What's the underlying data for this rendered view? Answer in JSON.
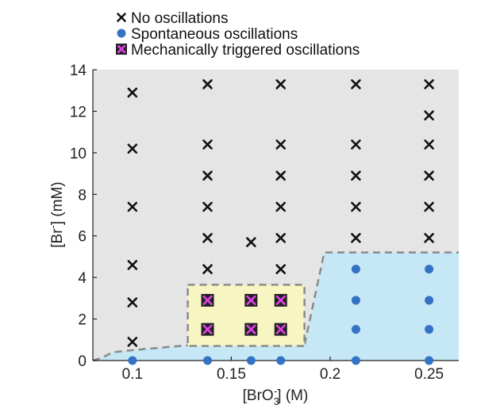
{
  "chart_data": {
    "type": "scatter",
    "xlabel": {
      "prefix": "[BrO",
      "sub": "3",
      "sup": "-",
      "suffix": "] (M)"
    },
    "ylabel": {
      "prefix": "[Br",
      "sup": "-",
      "suffix": "] (mM)"
    },
    "xlim": [
      0.08,
      0.265
    ],
    "ylim": [
      0,
      14
    ],
    "xticks": [
      0.1,
      0.15,
      0.2,
      0.25
    ],
    "xtick_labels": [
      "0.1",
      "0.15",
      "0.2",
      "0.25"
    ],
    "yticks": [
      0,
      2,
      4,
      6,
      8,
      10,
      12,
      14
    ],
    "ytick_labels": [
      "0",
      "2",
      "4",
      "6",
      "8",
      "10",
      "12",
      "14"
    ],
    "legend": {
      "position": "top",
      "entries": [
        {
          "key": "none",
          "label": "No oscillations"
        },
        {
          "key": "spont",
          "label": "Spontaneous oscillations"
        },
        {
          "key": "mech",
          "label": "Mechanically triggered oscillations"
        }
      ]
    },
    "colors": {
      "no_region": "#e5e5e5",
      "spont_region": "#c6e7f5",
      "mech_region": "#f7f5c2",
      "spont_marker": "#3372c4",
      "mech_marker_fill": "#222222",
      "mech_marker_cross": "#e040e8",
      "boundary": "#8a8a8a"
    },
    "regions": {
      "spontaneous_boundary": [
        [
          0.08,
          0.0
        ],
        [
          0.085,
          0.15
        ],
        [
          0.09,
          0.4
        ],
        [
          0.1,
          0.5
        ],
        [
          0.13,
          0.75
        ],
        [
          0.187,
          0.75
        ],
        [
          0.197,
          5.2
        ],
        [
          0.265,
          5.2
        ]
      ],
      "mechanical_box": {
        "x": [
          0.128,
          0.187
        ],
        "y": [
          0.7,
          3.65
        ]
      }
    },
    "series": [
      {
        "name": "No oscillations",
        "marker": "x",
        "points": [
          [
            0.1,
            0.9
          ],
          [
            0.1,
            2.8
          ],
          [
            0.1,
            4.6
          ],
          [
            0.1,
            7.4
          ],
          [
            0.1,
            10.2
          ],
          [
            0.1,
            12.9
          ],
          [
            0.138,
            4.4
          ],
          [
            0.138,
            5.9
          ],
          [
            0.138,
            7.4
          ],
          [
            0.138,
            8.9
          ],
          [
            0.138,
            10.4
          ],
          [
            0.138,
            13.3
          ],
          [
            0.16,
            5.7
          ],
          [
            0.175,
            4.4
          ],
          [
            0.175,
            5.9
          ],
          [
            0.175,
            7.4
          ],
          [
            0.175,
            8.9
          ],
          [
            0.175,
            10.4
          ],
          [
            0.175,
            13.3
          ],
          [
            0.213,
            5.9
          ],
          [
            0.213,
            7.4
          ],
          [
            0.213,
            8.9
          ],
          [
            0.213,
            10.4
          ],
          [
            0.213,
            13.3
          ],
          [
            0.25,
            5.9
          ],
          [
            0.25,
            7.4
          ],
          [
            0.25,
            8.9
          ],
          [
            0.25,
            10.4
          ],
          [
            0.25,
            11.8
          ],
          [
            0.25,
            13.3
          ]
        ]
      },
      {
        "name": "Spontaneous oscillations",
        "marker": "o",
        "points": [
          [
            0.1,
            0.0
          ],
          [
            0.138,
            0.0
          ],
          [
            0.16,
            0.0
          ],
          [
            0.175,
            0.0
          ],
          [
            0.213,
            0.0
          ],
          [
            0.213,
            1.5
          ],
          [
            0.213,
            2.9
          ],
          [
            0.213,
            4.4
          ],
          [
            0.25,
            0.0
          ],
          [
            0.25,
            1.5
          ],
          [
            0.25,
            2.9
          ],
          [
            0.25,
            4.4
          ]
        ]
      },
      {
        "name": "Mechanically triggered oscillations",
        "marker": "boxed-x",
        "points": [
          [
            0.138,
            1.5
          ],
          [
            0.138,
            2.9
          ],
          [
            0.16,
            1.5
          ],
          [
            0.16,
            2.9
          ],
          [
            0.175,
            1.5
          ],
          [
            0.175,
            2.9
          ]
        ]
      }
    ]
  }
}
